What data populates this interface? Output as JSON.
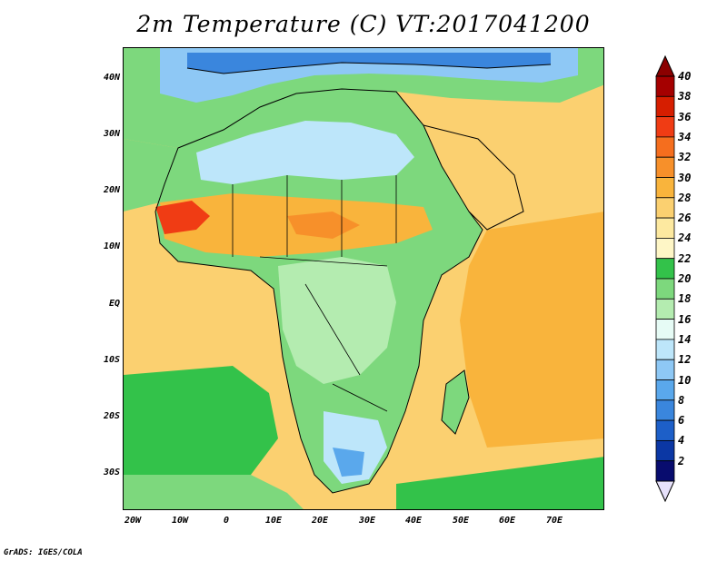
{
  "title": "2m Temperature (C) VT:2017041200",
  "credit": "GrADS: IGES/COLA",
  "map": {
    "lat_labels": [
      "40N",
      "30N",
      "20N",
      "10N",
      "EQ",
      "10S",
      "20S",
      "30S"
    ],
    "lon_labels": [
      "20W",
      "10W",
      "0",
      "10E",
      "20E",
      "30E",
      "40E",
      "50E",
      "60E",
      "70E"
    ],
    "extent": {
      "lon_min": -23,
      "lon_max": 80,
      "lat_min": -37,
      "lat_max": 45
    }
  },
  "colorbar": {
    "labels": [
      "40",
      "38",
      "36",
      "34",
      "32",
      "30",
      "28",
      "26",
      "24",
      "22",
      "20",
      "18",
      "16",
      "14",
      "12",
      "10",
      "8",
      "6",
      "4",
      "2"
    ],
    "colors": [
      "#a50000",
      "#d61e00",
      "#f03c14",
      "#f56e1e",
      "#f7902a",
      "#f9b43c",
      "#fbd070",
      "#fde9a0",
      "#fef6c6",
      "#33c24a",
      "#7dd87d",
      "#b4ecb0",
      "#e6fbf5",
      "#bde6fa",
      "#8ec8f5",
      "#5aa8ec",
      "#3a86dd",
      "#1d5fc8",
      "#0b37a4",
      "#080c6e"
    ],
    "end_colors": {
      "top": "#8b0000",
      "bottom": "#e6e0fa"
    }
  }
}
